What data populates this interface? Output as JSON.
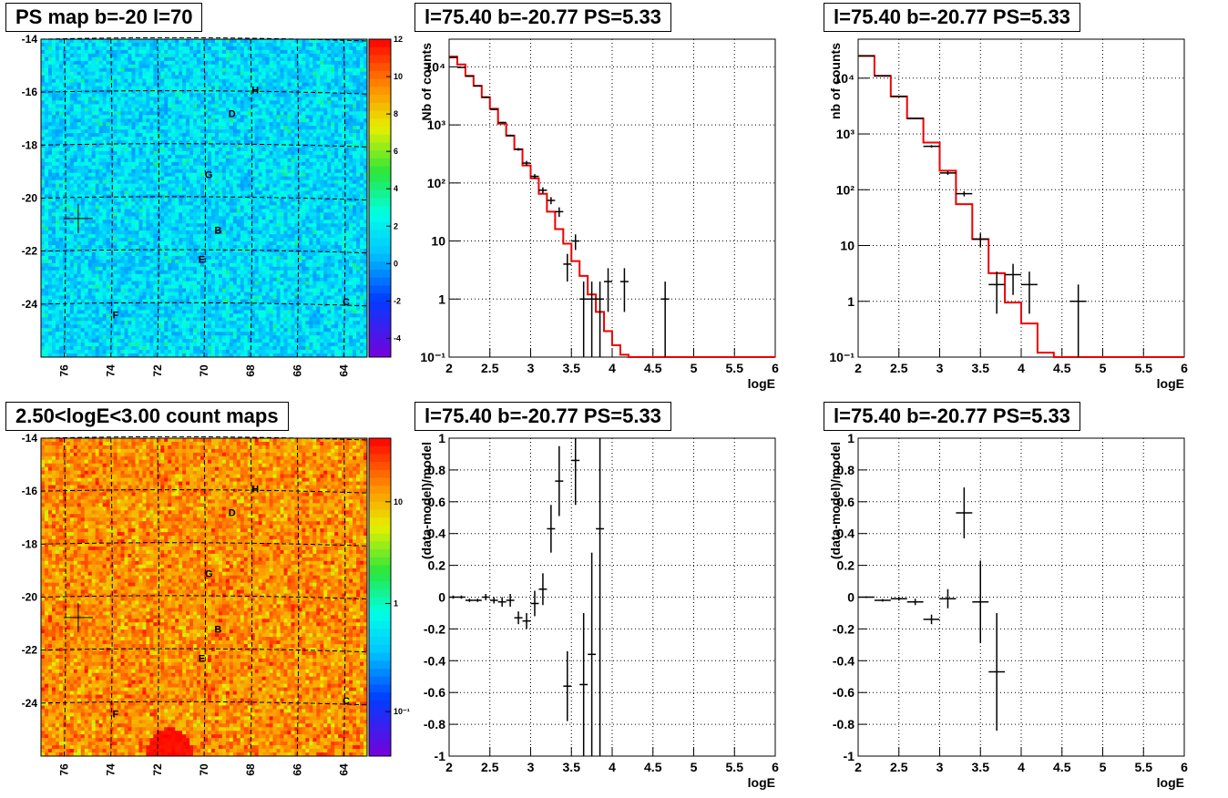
{
  "titles": {
    "map1": "PS map b=-20 l=70",
    "map2": "2.50<logE<3.00 count maps",
    "spec1": "l=75.40 b=-20.77 PS=5.33",
    "spec2": "l=75.40 b=-20.77 PS=5.33",
    "res1": "l=75.40 b=-20.77 PS=5.33",
    "res2": "l=75.40 b=-20.77 PS=5.33"
  },
  "chart_data": [
    {
      "id": "map1",
      "type": "heatmap",
      "title": "PS map b=-20 l=70",
      "x_ticks": [
        "76",
        "74",
        "72",
        "70",
        "68",
        "66",
        "64"
      ],
      "y_ticks": [
        "-14",
        "-16",
        "-18",
        "-20",
        "-22",
        "-24"
      ],
      "xlim": [
        77,
        63
      ],
      "ylim": [
        -26,
        -14
      ],
      "colorbar_ticks": [
        "12",
        "10",
        "8",
        "6",
        "4",
        "2",
        "0",
        "-2",
        "-4"
      ],
      "colorbar_range": [
        -5,
        12
      ],
      "labels": [
        {
          "text": "H",
          "l": 67.8,
          "b": -15.9
        },
        {
          "text": "D",
          "l": 68.8,
          "b": -16.8
        },
        {
          "text": "G",
          "l": 69.8,
          "b": -19.1
        },
        {
          "text": "B",
          "l": 69.4,
          "b": -21.2
        },
        {
          "text": "E",
          "l": 70.1,
          "b": -22.3
        },
        {
          "text": "F",
          "l": 73.8,
          "b": -24.4
        },
        {
          "text": "C",
          "l": 63.9,
          "b": -23.9
        }
      ],
      "marker": {
        "l": 75.4,
        "b": -20.77
      }
    },
    {
      "id": "map2",
      "type": "heatmap",
      "title": "2.50<logE<3.00 count maps",
      "x_ticks": [
        "76",
        "74",
        "72",
        "70",
        "68",
        "66",
        "64"
      ],
      "y_ticks": [
        "-14",
        "-16",
        "-18",
        "-20",
        "-22",
        "-24"
      ],
      "xlim": [
        77,
        63
      ],
      "ylim": [
        -26,
        -14
      ],
      "colorbar_ticks": [
        "10",
        "1",
        "10⁻¹"
      ],
      "colorbar_log": true,
      "labels": [
        {
          "text": "H",
          "l": 67.8,
          "b": -15.9
        },
        {
          "text": "D",
          "l": 68.8,
          "b": -16.8
        },
        {
          "text": "G",
          "l": 69.8,
          "b": -19.1
        },
        {
          "text": "B",
          "l": 69.4,
          "b": -21.2
        },
        {
          "text": "E",
          "l": 70.1,
          "b": -22.3
        },
        {
          "text": "F",
          "l": 73.8,
          "b": -24.4
        },
        {
          "text": "C",
          "l": 63.9,
          "b": -23.9
        }
      ],
      "marker": {
        "l": 75.4,
        "b": -20.77
      }
    },
    {
      "id": "spec1",
      "type": "line",
      "title": "l=75.40 b=-20.77 PS=5.33",
      "xlabel": "logE",
      "ylabel": "Nb of counts",
      "y_log": true,
      "xlim": [
        2,
        6
      ],
      "ylim": [
        0.1,
        30000
      ],
      "x_ticks": [
        "2",
        "2.5",
        "3",
        "3.5",
        "4",
        "4.5",
        "5",
        "5.5",
        "6"
      ],
      "y_ticks": [
        {
          "v": 0.1,
          "label": "10⁻¹"
        },
        {
          "v": 1,
          "label": "1"
        },
        {
          "v": 10,
          "label": "10"
        },
        {
          "v": 100,
          "label": "10²"
        },
        {
          "v": 1000,
          "label": "10³"
        },
        {
          "v": 10000,
          "label": "10⁴"
        }
      ],
      "model_step": {
        "edges": [
          2,
          2.1,
          2.2,
          2.3,
          2.4,
          2.5,
          2.6,
          2.7,
          2.8,
          2.9,
          3,
          3.1,
          3.2,
          3.3,
          3.4,
          3.5,
          3.6,
          3.7,
          3.8,
          3.9,
          4,
          4.1,
          4.2,
          6
        ],
        "values": [
          15000,
          11000,
          7000,
          4700,
          3000,
          1900,
          1050,
          650,
          380,
          200,
          120,
          65,
          32,
          16,
          9,
          4.5,
          2.5,
          1.2,
          0.6,
          0.28,
          0.16,
          0.11,
          0.1
        ]
      },
      "data_points": [
        {
          "x": 2.05,
          "y": 14500,
          "ylo": 14200,
          "yhi": 14800
        },
        {
          "x": 2.15,
          "y": 9800,
          "ylo": 9600,
          "yhi": 10000
        },
        {
          "x": 2.25,
          "y": 6900,
          "ylo": 6750,
          "yhi": 7050
        },
        {
          "x": 2.35,
          "y": 4700,
          "ylo": 4600,
          "yhi": 4800
        },
        {
          "x": 2.45,
          "y": 3000,
          "ylo": 2900,
          "yhi": 3100
        },
        {
          "x": 2.55,
          "y": 1850,
          "ylo": 1800,
          "yhi": 1900
        },
        {
          "x": 2.65,
          "y": 1100,
          "ylo": 1070,
          "yhi": 1130
        },
        {
          "x": 2.75,
          "y": 660,
          "ylo": 640,
          "yhi": 680
        },
        {
          "x": 2.85,
          "y": 380,
          "ylo": 360,
          "yhi": 400
        },
        {
          "x": 2.95,
          "y": 220,
          "ylo": 200,
          "yhi": 240
        },
        {
          "x": 3.05,
          "y": 130,
          "ylo": 118,
          "yhi": 142
        },
        {
          "x": 3.15,
          "y": 75,
          "ylo": 66,
          "yhi": 84
        },
        {
          "x": 3.25,
          "y": 50,
          "ylo": 43,
          "yhi": 57
        },
        {
          "x": 3.35,
          "y": 32,
          "ylo": 26,
          "yhi": 38
        },
        {
          "x": 3.45,
          "y": 4,
          "ylo": 2,
          "yhi": 6
        },
        {
          "x": 3.55,
          "y": 10,
          "ylo": 7,
          "yhi": 13
        },
        {
          "x": 3.65,
          "y": 1,
          "ylo": 0.1,
          "yhi": 2
        },
        {
          "x": 3.75,
          "y": 1,
          "ylo": 0.1,
          "yhi": 2
        },
        {
          "x": 3.85,
          "y": 1,
          "ylo": 0.1,
          "yhi": 2
        },
        {
          "x": 3.95,
          "y": 2,
          "ylo": 0.6,
          "yhi": 3.4
        },
        {
          "x": 4.15,
          "y": 2,
          "ylo": 0.6,
          "yhi": 3.4
        },
        {
          "x": 4.65,
          "y": 1,
          "ylo": 0.1,
          "yhi": 2
        }
      ]
    },
    {
      "id": "spec2",
      "type": "line",
      "title": "l=75.40 b=-20.77 PS=5.33",
      "xlabel": "logE",
      "ylabel": "nb of counts",
      "y_log": true,
      "xlim": [
        2,
        6
      ],
      "ylim": [
        0.1,
        50000
      ],
      "x_ticks": [
        "2",
        "2.5",
        "3",
        "3.5",
        "4",
        "4.5",
        "5",
        "5.5",
        "6"
      ],
      "y_ticks": [
        {
          "v": 0.1,
          "label": "10⁻¹"
        },
        {
          "v": 1,
          "label": "1"
        },
        {
          "v": 10,
          "label": "10"
        },
        {
          "v": 100,
          "label": "10²"
        },
        {
          "v": 1000,
          "label": "10³"
        },
        {
          "v": 10000,
          "label": "10⁴"
        }
      ],
      "model_step": {
        "edges": [
          2,
          2.2,
          2.4,
          2.6,
          2.8,
          3,
          3.2,
          3.4,
          3.6,
          3.8,
          4,
          4.2,
          4.4,
          6
        ],
        "values": [
          25000,
          11000,
          4700,
          1900,
          700,
          220,
          55,
          13,
          3.2,
          0.95,
          0.4,
          0.12,
          0.1
        ]
      },
      "data_points": [
        {
          "x": 2.1,
          "y": 25000,
          "ylo": 24500,
          "yhi": 25500
        },
        {
          "x": 2.3,
          "y": 11000,
          "ylo": 10800,
          "yhi": 11200
        },
        {
          "x": 2.5,
          "y": 4700,
          "ylo": 4600,
          "yhi": 4800
        },
        {
          "x": 2.7,
          "y": 1900,
          "ylo": 1850,
          "yhi": 1950
        },
        {
          "x": 2.9,
          "y": 600,
          "ylo": 570,
          "yhi": 630
        },
        {
          "x": 3.1,
          "y": 200,
          "ylo": 185,
          "yhi": 215
        },
        {
          "x": 3.3,
          "y": 85,
          "ylo": 76,
          "yhi": 94
        },
        {
          "x": 3.5,
          "y": 13,
          "ylo": 9.5,
          "yhi": 16.5
        },
        {
          "x": 3.7,
          "y": 2,
          "ylo": 0.6,
          "yhi": 3.4
        },
        {
          "x": 3.9,
          "y": 3,
          "ylo": 1.3,
          "yhi": 4.7
        },
        {
          "x": 4.1,
          "y": 2,
          "ylo": 0.6,
          "yhi": 3.4
        },
        {
          "x": 4.7,
          "y": 1,
          "ylo": 0.1,
          "yhi": 2
        }
      ]
    },
    {
      "id": "res1",
      "type": "scatter",
      "title": "l=75.40 b=-20.77 PS=5.33",
      "xlabel": "logE",
      "ylabel": "(data-model)/model",
      "xlim": [
        2,
        6
      ],
      "ylim": [
        -1,
        1
      ],
      "x_ticks": [
        "2",
        "2.5",
        "3",
        "3.5",
        "4",
        "4.5",
        "5",
        "5.5",
        "6"
      ],
      "y_ticks": [
        "1",
        "0.8",
        "0.6",
        "0.4",
        "0.2",
        "0",
        "-0.2",
        "-0.4",
        "-0.6",
        "-0.8",
        "-1"
      ],
      "data_points": [
        {
          "x": 2.05,
          "y": 0.0,
          "err": 0.01
        },
        {
          "x": 2.15,
          "y": 0.0,
          "err": 0.01
        },
        {
          "x": 2.25,
          "y": -0.02,
          "err": 0.01
        },
        {
          "x": 2.35,
          "y": -0.02,
          "err": 0.01
        },
        {
          "x": 2.45,
          "y": 0.0,
          "err": 0.02
        },
        {
          "x": 2.55,
          "y": -0.02,
          "err": 0.02
        },
        {
          "x": 2.65,
          "y": -0.03,
          "err": 0.03
        },
        {
          "x": 2.75,
          "y": -0.02,
          "err": 0.04
        },
        {
          "x": 2.85,
          "y": -0.13,
          "err": 0.04
        },
        {
          "x": 2.95,
          "y": -0.15,
          "err": 0.05
        },
        {
          "x": 3.05,
          "y": -0.04,
          "err": 0.08
        },
        {
          "x": 3.15,
          "y": 0.05,
          "err": 0.1
        },
        {
          "x": 3.25,
          "y": 0.43,
          "err": 0.15
        },
        {
          "x": 3.35,
          "y": 0.73,
          "err": 0.22
        },
        {
          "x": 3.45,
          "y": -0.56,
          "err": 0.22
        },
        {
          "x": 3.55,
          "y": 0.86,
          "err": 0.28
        },
        {
          "x": 3.65,
          "y": -0.55,
          "err": 0.45
        },
        {
          "x": 3.75,
          "y": -0.36,
          "err": 0.64
        },
        {
          "x": 3.85,
          "y": 0.43,
          "err": 1.43
        }
      ]
    },
    {
      "id": "res2",
      "type": "scatter",
      "title": "l=75.40 b=-20.77 PS=5.33",
      "xlabel": "logE",
      "ylabel": "(data-model)/model",
      "xlim": [
        2,
        6
      ],
      "ylim": [
        -1,
        1
      ],
      "x_ticks": [
        "2",
        "2.5",
        "3",
        "3.5",
        "4",
        "4.5",
        "5",
        "5.5",
        "6"
      ],
      "y_ticks": [
        "1",
        "0.8",
        "0.6",
        "0.4",
        "0.2",
        "0",
        "-0.2",
        "-0.4",
        "-0.6",
        "-0.8",
        "-1"
      ],
      "data_points": [
        {
          "x": 2.1,
          "y": 0.0,
          "err": 0.005
        },
        {
          "x": 2.3,
          "y": -0.02,
          "err": 0.008
        },
        {
          "x": 2.5,
          "y": -0.01,
          "err": 0.012
        },
        {
          "x": 2.7,
          "y": -0.03,
          "err": 0.02
        },
        {
          "x": 2.9,
          "y": -0.14,
          "err": 0.03
        },
        {
          "x": 3.1,
          "y": -0.01,
          "err": 0.06
        },
        {
          "x": 3.3,
          "y": 0.53,
          "err": 0.16
        },
        {
          "x": 3.5,
          "y": -0.03,
          "err": 0.26
        },
        {
          "x": 3.7,
          "y": -0.47,
          "err": 0.37
        }
      ]
    }
  ]
}
